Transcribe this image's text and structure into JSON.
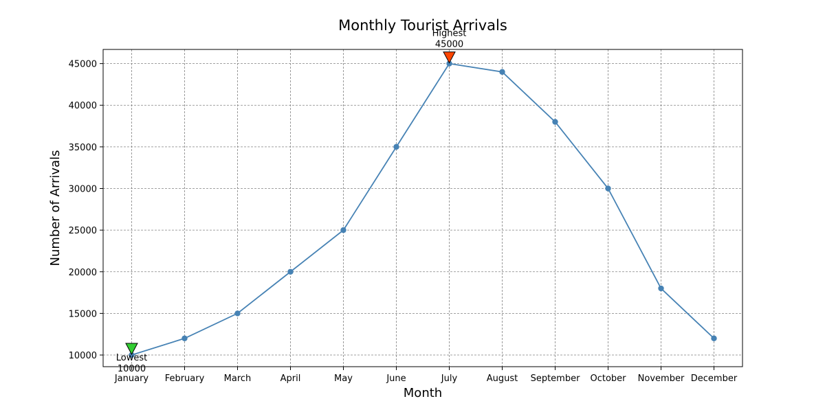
{
  "chart_data": {
    "type": "line",
    "title": "Monthly Tourist Arrivals",
    "xlabel": "Month",
    "ylabel": "Number of Arrivals",
    "categories": [
      "January",
      "February",
      "March",
      "April",
      "May",
      "June",
      "July",
      "August",
      "September",
      "October",
      "November",
      "December"
    ],
    "series": [
      {
        "values": [
          10000,
          12000,
          15000,
          20000,
          25000,
          35000,
          45000,
          44000,
          38000,
          30000,
          18000,
          12000
        ],
        "color": "#4682b4"
      }
    ],
    "ylim": [
      8600,
      46700
    ],
    "yticks": [
      10000,
      15000,
      20000,
      25000,
      30000,
      35000,
      40000,
      45000
    ],
    "grid": true,
    "annotations": [
      {
        "kind": "highest",
        "category": "July",
        "value": 45000,
        "line1": "Highest",
        "line2": "45000",
        "marker_color": "#ff4500"
      },
      {
        "kind": "lowest",
        "category": "January",
        "value": 10000,
        "line1": "Lowest",
        "line2": "10000",
        "marker_color": "#32cd32"
      }
    ]
  }
}
